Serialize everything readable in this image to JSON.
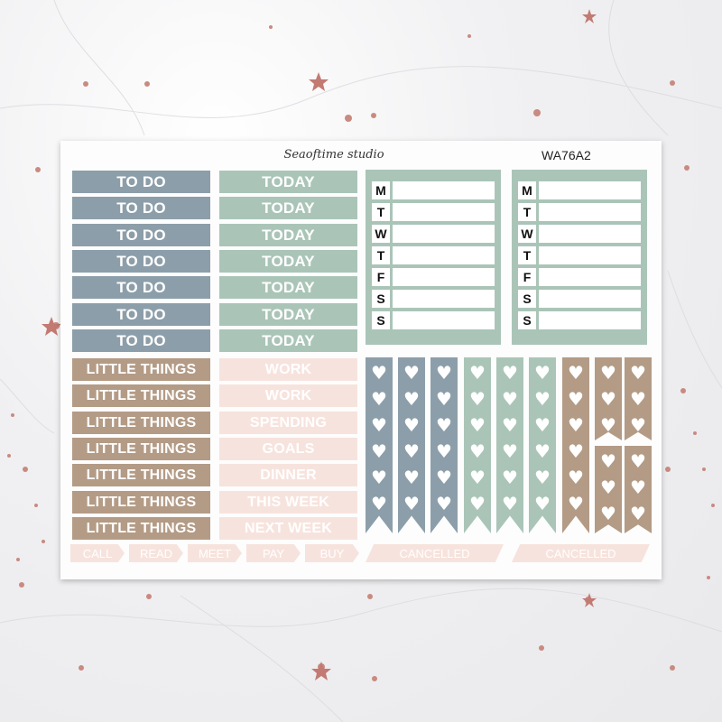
{
  "brand": "Seaoftime studio",
  "product_code": "WA76A2",
  "todo_labels": [
    "TO DO",
    "TO DO",
    "TO DO",
    "TO DO",
    "TO DO",
    "TO DO",
    "TO DO"
  ],
  "today_labels": [
    "TODAY",
    "TODAY",
    "TODAY",
    "TODAY",
    "TODAY",
    "TODAY",
    "TODAY"
  ],
  "little_labels": [
    "LITTLE THINGS",
    "LITTLE THINGS",
    "LITTLE THINGS",
    "LITTLE THINGS",
    "LITTLE THINGS",
    "LITTLE THINGS",
    "LITTLE THINGS"
  ],
  "pink_labels": [
    "WORK",
    "WORK",
    "SPENDING",
    "GOALS",
    "DINNER",
    "THIS WEEK",
    "NEXT WEEK"
  ],
  "small_tags": [
    "CALL",
    "READ",
    "MEET",
    "PAY",
    "BUY"
  ],
  "cancel_tags": [
    "CANCELLED",
    "CANCELLED"
  ],
  "weekdays": [
    "M",
    "T",
    "W",
    "T",
    "F",
    "S",
    "S"
  ],
  "colors": {
    "slate": "#8c9ea9",
    "sage": "#aac5b8",
    "tan": "#b39b86",
    "blush": "#f7e3dd",
    "sparkle": "#c98a80"
  },
  "icons": {
    "heart": "heart-icon",
    "star": "star-icon"
  }
}
